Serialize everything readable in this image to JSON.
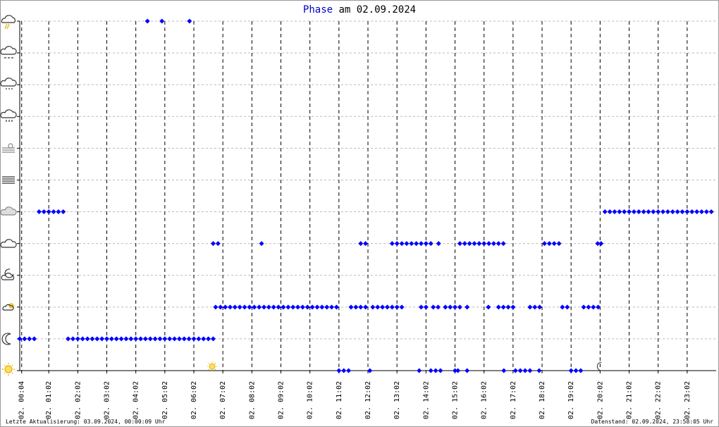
{
  "chart_data": {
    "type": "scatter",
    "title_highlight": "Phase",
    "title": "am 02.09.2024",
    "footer_left": "Letzte Aktualisierung: 03.09.2024, 00:00:09 Uhr",
    "footer_right": "Datenstand: 02.09.2024, 23:58:05 Uhr",
    "color": "#0000ff",
    "xlim": [
      0,
      1440
    ],
    "ylim": [
      0,
      11
    ],
    "yticks": [
      0,
      1,
      2,
      3,
      4,
      5,
      6,
      7,
      8,
      9,
      10,
      11
    ],
    "xticks": [
      {
        "value": 4,
        "label": "02. 00:04"
      },
      {
        "value": 60,
        "label": "02. 01:02"
      },
      {
        "value": 120,
        "label": "02. 02:02"
      },
      {
        "value": 180,
        "label": "02. 03:02"
      },
      {
        "value": 240,
        "label": "02. 04:02"
      },
      {
        "value": 300,
        "label": "02. 05:02"
      },
      {
        "value": 360,
        "label": "02. 06:02"
      },
      {
        "value": 420,
        "label": "02. 07:02"
      },
      {
        "value": 480,
        "label": "02. 08:02"
      },
      {
        "value": 540,
        "label": "02. 09:02"
      },
      {
        "value": 600,
        "label": "02. 10:02"
      },
      {
        "value": 660,
        "label": "02. 11:02"
      },
      {
        "value": 720,
        "label": "02. 12:02"
      },
      {
        "value": 780,
        "label": "02. 13:02"
      },
      {
        "value": 840,
        "label": "02. 14:02"
      },
      {
        "value": 900,
        "label": "02. 15:02"
      },
      {
        "value": 960,
        "label": "02. 16:02"
      },
      {
        "value": 1020,
        "label": "02. 17:02"
      },
      {
        "value": 1080,
        "label": "02. 18:02"
      },
      {
        "value": 1140,
        "label": "02. 19:02"
      },
      {
        "value": 1200,
        "label": "02. 20:02"
      },
      {
        "value": 1260,
        "label": "02. 21:02"
      },
      {
        "value": 1320,
        "label": "02. 22:02"
      },
      {
        "value": 1380,
        "label": "02. 23:02"
      }
    ],
    "sunrise": 398,
    "sunset": 1200,
    "x": [
      0,
      10,
      20,
      30,
      100,
      110,
      120,
      130,
      140,
      150,
      160,
      170,
      180,
      190,
      200,
      210,
      220,
      230,
      240,
      250,
      260,
      270,
      280,
      290,
      300,
      310,
      320,
      330,
      340,
      350,
      360,
      370,
      380,
      390,
      400,
      40,
      50,
      60,
      70,
      80,
      90,
      1210,
      1220,
      1230,
      1240,
      1250,
      1260,
      1270,
      1280,
      1290,
      1300,
      1310,
      1320,
      1330,
      1340,
      1350,
      1360,
      1370,
      1380,
      1390,
      1400,
      1410,
      1420,
      1430,
      264,
      294,
      351,
      400,
      410,
      500,
      705,
      715,
      770,
      780,
      790,
      800,
      810,
      820,
      830,
      840,
      850,
      866,
      910,
      920,
      930,
      940,
      950,
      960,
      970,
      980,
      990,
      1000,
      1085,
      1095,
      1105,
      1115,
      1195,
      1202,
      405,
      415,
      425,
      435,
      445,
      455,
      465,
      475,
      485,
      495,
      505,
      515,
      525,
      535,
      545,
      555,
      565,
      575,
      585,
      595,
      605,
      615,
      625,
      635,
      645,
      655,
      685,
      695,
      705,
      715,
      730,
      740,
      750,
      760,
      770,
      780,
      790,
      830,
      840,
      855,
      865,
      880,
      890,
      900,
      910,
      925,
      969,
      990,
      1000,
      1010,
      1020,
      1055,
      1065,
      1075,
      1122,
      1132,
      1166,
      1176,
      1186,
      1196,
      660,
      670,
      680,
      724,
      826,
      850,
      860,
      870,
      900,
      906,
      925,
      1001,
      1025,
      1035,
      1045,
      1055,
      1074,
      1140,
      1150,
      1160
    ],
    "values": [
      1,
      1,
      1,
      1,
      1,
      1,
      1,
      1,
      1,
      1,
      1,
      1,
      1,
      1,
      1,
      1,
      1,
      1,
      1,
      1,
      1,
      1,
      1,
      1,
      1,
      1,
      1,
      1,
      1,
      1,
      1,
      1,
      1,
      1,
      1,
      5,
      5,
      5,
      5,
      5,
      5,
      5,
      5,
      5,
      5,
      5,
      5,
      5,
      5,
      5,
      5,
      5,
      5,
      5,
      5,
      5,
      5,
      5,
      5,
      5,
      5,
      5,
      5,
      5,
      11,
      11,
      11,
      4,
      4,
      4,
      4,
      4,
      4,
      4,
      4,
      4,
      4,
      4,
      4,
      4,
      4,
      4,
      4,
      4,
      4,
      4,
      4,
      4,
      4,
      4,
      4,
      4,
      4,
      4,
      4,
      4,
      4,
      4,
      2,
      2,
      2,
      2,
      2,
      2,
      2,
      2,
      2,
      2,
      2,
      2,
      2,
      2,
      2,
      2,
      2,
      2,
      2,
      2,
      2,
      2,
      2,
      2,
      2,
      2,
      2,
      2,
      2,
      2,
      2,
      2,
      2,
      2,
      2,
      2,
      2,
      2,
      2,
      2,
      2,
      2,
      2,
      2,
      2,
      2,
      2,
      2,
      2,
      2,
      2,
      2,
      2,
      2,
      2,
      2,
      2,
      2,
      2,
      2,
      0,
      0,
      0,
      0,
      0,
      0,
      0,
      0,
      0,
      0,
      0,
      0,
      0,
      0,
      0,
      0,
      0,
      0,
      0,
      0
    ]
  }
}
